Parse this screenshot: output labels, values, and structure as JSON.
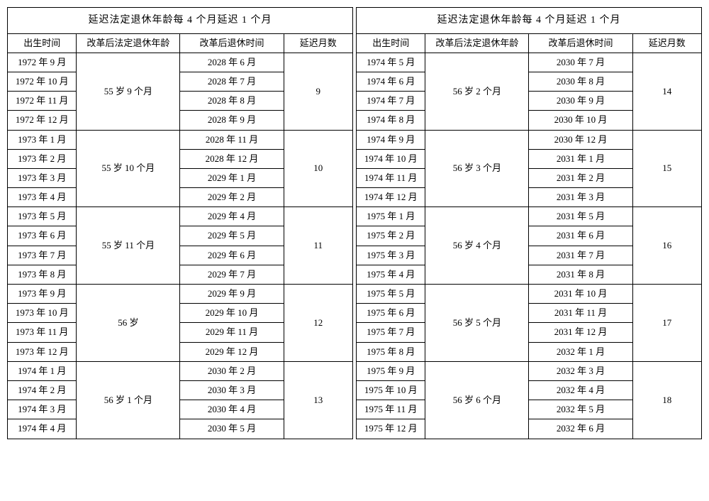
{
  "title": "延迟法定退休年龄每 4 个月延迟 1 个月",
  "headers": {
    "birth": "出生时间",
    "age": "改革后法定退休年龄",
    "retire_time": "改革后退休时间",
    "delay_months": "延迟月数"
  },
  "left": {
    "groups": [
      {
        "age": "55 岁 9 个月",
        "delay": "9",
        "rows": [
          {
            "birth": "1972 年 9 月",
            "retire": "2028 年 6 月"
          },
          {
            "birth": "1972 年 10 月",
            "retire": "2028 年 7 月"
          },
          {
            "birth": "1972 年 11 月",
            "retire": "2028 年 8 月"
          },
          {
            "birth": "1972 年 12 月",
            "retire": "2028 年 9 月"
          }
        ]
      },
      {
        "age": "55 岁 10 个月",
        "delay": "10",
        "rows": [
          {
            "birth": "1973 年 1 月",
            "retire": "2028 年 11 月"
          },
          {
            "birth": "1973 年 2 月",
            "retire": "2028 年 12 月"
          },
          {
            "birth": "1973 年 3 月",
            "retire": "2029 年 1 月"
          },
          {
            "birth": "1973 年 4 月",
            "retire": "2029 年 2 月"
          }
        ]
      },
      {
        "age": "55 岁 11 个月",
        "delay": "11",
        "rows": [
          {
            "birth": "1973 年 5 月",
            "retire": "2029 年 4 月"
          },
          {
            "birth": "1973 年 6 月",
            "retire": "2029 年 5 月"
          },
          {
            "birth": "1973 年 7 月",
            "retire": "2029 年 6 月"
          },
          {
            "birth": "1973 年 8 月",
            "retire": "2029 年 7 月"
          }
        ]
      },
      {
        "age": "56 岁",
        "delay": "12",
        "rows": [
          {
            "birth": "1973 年 9 月",
            "retire": "2029 年 9 月"
          },
          {
            "birth": "1973 年 10 月",
            "retire": "2029 年 10 月"
          },
          {
            "birth": "1973 年 11 月",
            "retire": "2029 年 11 月"
          },
          {
            "birth": "1973 年 12 月",
            "retire": "2029 年 12 月"
          }
        ]
      },
      {
        "age": "56 岁 1 个月",
        "delay": "13",
        "rows": [
          {
            "birth": "1974 年 1 月",
            "retire": "2030 年 2 月"
          },
          {
            "birth": "1974 年 2 月",
            "retire": "2030 年 3 月"
          },
          {
            "birth": "1974 年 3 月",
            "retire": "2030 年 4 月"
          },
          {
            "birth": "1974 年 4 月",
            "retire": "2030 年 5 月"
          }
        ]
      }
    ]
  },
  "right": {
    "groups": [
      {
        "age": "56 岁 2 个月",
        "delay": "14",
        "rows": [
          {
            "birth": "1974 年 5 月",
            "retire": "2030 年 7 月"
          },
          {
            "birth": "1974 年 6 月",
            "retire": "2030 年 8 月"
          },
          {
            "birth": "1974 年 7 月",
            "retire": "2030 年 9 月"
          },
          {
            "birth": "1974 年 8 月",
            "retire": "2030 年 10 月"
          }
        ]
      },
      {
        "age": "56 岁 3 个月",
        "delay": "15",
        "rows": [
          {
            "birth": "1974 年 9 月",
            "retire": "2030 年 12 月"
          },
          {
            "birth": "1974 年 10 月",
            "retire": "2031 年 1 月"
          },
          {
            "birth": "1974 年 11 月",
            "retire": "2031 年 2 月"
          },
          {
            "birth": "1974 年 12 月",
            "retire": "2031 年 3 月"
          }
        ]
      },
      {
        "age": "56 岁 4 个月",
        "delay": "16",
        "rows": [
          {
            "birth": "1975 年 1 月",
            "retire": "2031 年 5 月"
          },
          {
            "birth": "1975 年 2 月",
            "retire": "2031 年 6 月"
          },
          {
            "birth": "1975 年 3 月",
            "retire": "2031 年 7 月"
          },
          {
            "birth": "1975 年 4 月",
            "retire": "2031 年 8 月"
          }
        ]
      },
      {
        "age": "56 岁 5 个月",
        "delay": "17",
        "rows": [
          {
            "birth": "1975 年 5 月",
            "retire": "2031 年 10 月"
          },
          {
            "birth": "1975 年 6 月",
            "retire": "2031 年 11 月"
          },
          {
            "birth": "1975 年 7 月",
            "retire": "2031 年 12 月"
          },
          {
            "birth": "1975 年 8 月",
            "retire": "2032 年 1 月"
          }
        ]
      },
      {
        "age": "56 岁 6 个月",
        "delay": "18",
        "rows": [
          {
            "birth": "1975 年 9 月",
            "retire": "2032 年 3 月"
          },
          {
            "birth": "1975 年 10 月",
            "retire": "2032 年 4 月"
          },
          {
            "birth": "1975 年 11 月",
            "retire": "2032 年 5 月"
          },
          {
            "birth": "1975 年 12 月",
            "retire": "2032 年 6 月"
          }
        ]
      }
    ]
  }
}
